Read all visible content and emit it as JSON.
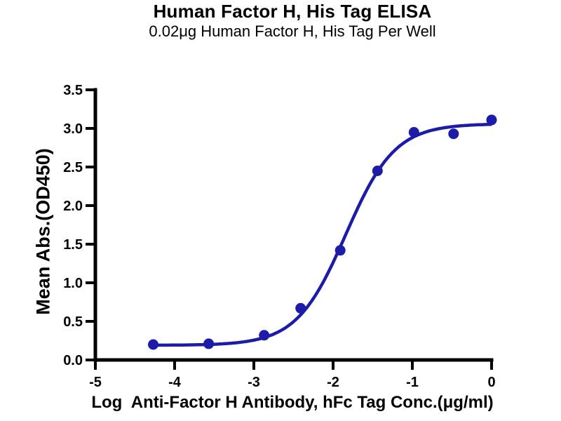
{
  "chart_data": {
    "type": "scatter",
    "title": "Human Factor H, His Tag ELISA",
    "subtitle": "0.02μg Human Factor H, His Tag Per Well",
    "xlabel": "Log  Anti-Factor H Antibody, hFc Tag Conc.(μg/ml)",
    "ylabel": "Mean Abs.(OD450)",
    "xlim": [
      -5,
      0
    ],
    "ylim": [
      0,
      3.5
    ],
    "xticks": [
      -5,
      -4,
      -3,
      -2,
      -1,
      0
    ],
    "xtick_labels": [
      "-5",
      "-4",
      "-3",
      "-2",
      "-1",
      "0"
    ],
    "yticks": [
      0,
      0.5,
      1,
      1.5,
      2,
      2.5,
      3,
      3.5
    ],
    "ytick_labels": [
      "0.0",
      "0.5",
      "1.0",
      "1.5",
      "2.0",
      "2.5",
      "3.0",
      "3.5"
    ],
    "grid": false,
    "legend": "none",
    "colors": {
      "curve": "#1c1ca8",
      "marker": "#1c1ca8",
      "axis": "#000000"
    },
    "series": [
      {
        "x": [
          -4.27,
          -3.57,
          -2.87,
          -2.41,
          -1.91,
          -1.44,
          -0.98,
          -0.48,
          0.0
        ],
        "y": [
          0.2,
          0.21,
          0.32,
          0.67,
          1.42,
          2.45,
          2.95,
          2.93,
          3.11
        ],
        "marker": "circle",
        "marker_size": 7.5
      }
    ],
    "fit_curve": {
      "model": "4PL",
      "bottom": 0.19,
      "top": 3.06,
      "logEC50": -1.84,
      "hillslope": 1.4,
      "x_start": -4.27,
      "x_end": 0,
      "width": 4.5
    }
  }
}
